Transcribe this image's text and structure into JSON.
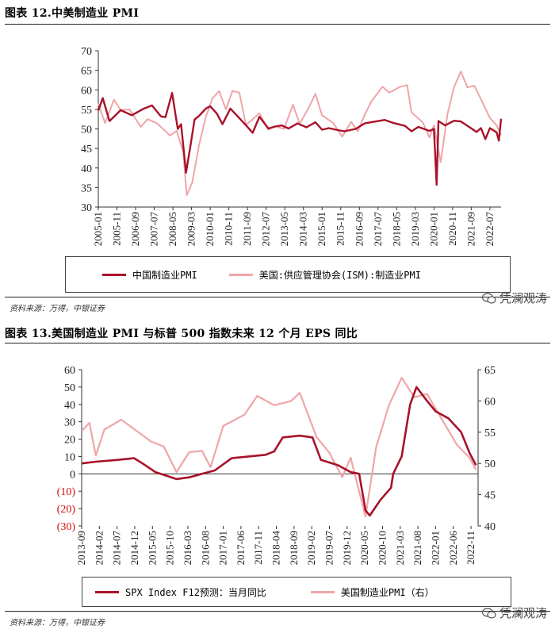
{
  "chart1": {
    "title": "图表 12.中美制造业 PMI",
    "source": "资料来源：万得，中银证券",
    "legend": [
      "中国制造业PMI",
      "美国:供应管理协会(ISM):制造业PMI"
    ],
    "colors": {
      "china": "#a8122a",
      "us": "#f0a5a8"
    }
  },
  "chart2": {
    "title": "图表 13.美国制造业 PMI 与标普 500 指数未来 12 个月 EPS 同比",
    "source": "资料来源：万得，中银证券",
    "legend": [
      "SPX Index F12预测：当月同比",
      "美国制造业PMI（右）"
    ],
    "colors": {
      "eps": "#a8122a",
      "pmi": "#f0a5a8",
      "negative_label": "#d01010"
    }
  },
  "watermark": "凭澜观涛",
  "chart_data": [
    {
      "type": "line",
      "title": "图表 12.中美制造业 PMI",
      "xlabel": "",
      "ylabel": "",
      "ylim": [
        30,
        70
      ],
      "yticks": [
        30,
        35,
        40,
        45,
        50,
        55,
        60,
        65,
        70
      ],
      "x_range": [
        "2005-01",
        "2022-12"
      ],
      "x_ticks": [
        "2005-01",
        "2005-11",
        "2006-09",
        "2007-07",
        "2008-05",
        "2009-03",
        "2010-01",
        "2010-11",
        "2011-09",
        "2012-07",
        "2013-05",
        "2014-03",
        "2015-01",
        "2015-11",
        "2016-09",
        "2017-07",
        "2018-05",
        "2019-03",
        "2020-01",
        "2020-11",
        "2021-09",
        "2022-07"
      ],
      "series": [
        {
          "name": "中国制造业PMI",
          "points": [
            [
              2005.0,
              54.7
            ],
            [
              2005.2,
              57.9
            ],
            [
              2005.5,
              52.0
            ],
            [
              2006.0,
              54.8
            ],
            [
              2006.5,
              53.5
            ],
            [
              2007.0,
              55.1
            ],
            [
              2007.4,
              56.0
            ],
            [
              2007.8,
              53.2
            ],
            [
              2008.0,
              53.0
            ],
            [
              2008.3,
              59.2
            ],
            [
              2008.55,
              50.0
            ],
            [
              2008.7,
              51.2
            ],
            [
              2008.92,
              38.8
            ],
            [
              2009.1,
              45.0
            ],
            [
              2009.3,
              52.4
            ],
            [
              2009.5,
              53.3
            ],
            [
              2009.8,
              55.2
            ],
            [
              2010.0,
              55.8
            ],
            [
              2010.3,
              53.9
            ],
            [
              2010.55,
              51.2
            ],
            [
              2010.9,
              55.2
            ],
            [
              2011.2,
              53.4
            ],
            [
              2011.6,
              50.9
            ],
            [
              2011.9,
              49.0
            ],
            [
              2012.2,
              53.1
            ],
            [
              2012.6,
              50.1
            ],
            [
              2012.9,
              50.6
            ],
            [
              2013.2,
              50.9
            ],
            [
              2013.5,
              50.1
            ],
            [
              2013.9,
              51.4
            ],
            [
              2014.3,
              50.4
            ],
            [
              2014.7,
              51.7
            ],
            [
              2015.0,
              49.8
            ],
            [
              2015.3,
              50.2
            ],
            [
              2015.7,
              49.7
            ],
            [
              2016.0,
              49.4
            ],
            [
              2016.5,
              50.0
            ],
            [
              2016.9,
              51.4
            ],
            [
              2017.3,
              51.8
            ],
            [
              2017.8,
              52.3
            ],
            [
              2018.2,
              51.5
            ],
            [
              2018.7,
              50.8
            ],
            [
              2019.0,
              49.4
            ],
            [
              2019.3,
              50.5
            ],
            [
              2019.8,
              49.5
            ],
            [
              2020.0,
              50.0
            ],
            [
              2020.12,
              35.7
            ],
            [
              2020.2,
              52.0
            ],
            [
              2020.5,
              50.9
            ],
            [
              2020.9,
              52.1
            ],
            [
              2021.2,
              51.9
            ],
            [
              2021.6,
              50.4
            ],
            [
              2021.9,
              49.2
            ],
            [
              2022.1,
              50.2
            ],
            [
              2022.3,
              47.4
            ],
            [
              2022.5,
              50.2
            ],
            [
              2022.8,
              49.1
            ],
            [
              2022.9,
              47.0
            ],
            [
              2023.0,
              52.6
            ]
          ]
        },
        {
          "name": "美国:供应管理协会(ISM):制造业PMI",
          "points": [
            [
              2005.0,
              56.5
            ],
            [
              2005.3,
              51.5
            ],
            [
              2005.7,
              57.5
            ],
            [
              2006.0,
              54.8
            ],
            [
              2006.4,
              55.0
            ],
            [
              2006.9,
              50.5
            ],
            [
              2007.2,
              52.5
            ],
            [
              2007.6,
              51.5
            ],
            [
              2007.9,
              50.0
            ],
            [
              2008.2,
              48.3
            ],
            [
              2008.5,
              49.5
            ],
            [
              2008.8,
              44.0
            ],
            [
              2008.95,
              33.0
            ],
            [
              2009.2,
              36.3
            ],
            [
              2009.5,
              45.8
            ],
            [
              2009.8,
              53.0
            ],
            [
              2010.1,
              57.8
            ],
            [
              2010.4,
              59.7
            ],
            [
              2010.7,
              55.0
            ],
            [
              2011.0,
              59.7
            ],
            [
              2011.3,
              59.3
            ],
            [
              2011.6,
              51.0
            ],
            [
              2011.9,
              52.5
            ],
            [
              2012.2,
              54.0
            ],
            [
              2012.6,
              49.8
            ],
            [
              2012.9,
              50.7
            ],
            [
              2013.3,
              50.0
            ],
            [
              2013.7,
              56.2
            ],
            [
              2014.0,
              51.3
            ],
            [
              2014.4,
              55.4
            ],
            [
              2014.7,
              59.0
            ],
            [
              2015.0,
              53.5
            ],
            [
              2015.5,
              51.5
            ],
            [
              2015.9,
              48.0
            ],
            [
              2016.3,
              51.8
            ],
            [
              2016.6,
              49.4
            ],
            [
              2016.9,
              53.5
            ],
            [
              2017.2,
              57.0
            ],
            [
              2017.7,
              60.8
            ],
            [
              2018.0,
              59.3
            ],
            [
              2018.5,
              60.8
            ],
            [
              2018.8,
              61.2
            ],
            [
              2019.0,
              54.2
            ],
            [
              2019.5,
              51.7
            ],
            [
              2019.8,
              47.8
            ],
            [
              2020.0,
              50.9
            ],
            [
              2020.3,
              41.5
            ],
            [
              2020.6,
              53.7
            ],
            [
              2020.9,
              60.7
            ],
            [
              2021.2,
              64.7
            ],
            [
              2021.5,
              60.6
            ],
            [
              2021.8,
              61.1
            ],
            [
              2022.1,
              57.6
            ],
            [
              2022.5,
              52.8
            ],
            [
              2022.8,
              50.9
            ],
            [
              2023.0,
              48.4
            ]
          ]
        }
      ]
    },
    {
      "type": "line",
      "title": "图表 13.美国制造业 PMI 与标普 500 指数未来 12 个月 EPS 同比",
      "xlabel": "",
      "ylabel": "",
      "ylim": [
        -30,
        60
      ],
      "yticks_left": [
        "(30)",
        "(20)",
        "(10)",
        "0",
        "10",
        "20",
        "30",
        "40",
        "50",
        "60"
      ],
      "ylim_right": [
        40,
        65
      ],
      "yticks_right": [
        "40",
        "45",
        "50",
        "55",
        "60",
        "65"
      ],
      "x_range": [
        "2013-09",
        "2022-12"
      ],
      "x_ticks": [
        "2013-09",
        "2014-02",
        "2014-07",
        "2014-12",
        "2015-05",
        "2015-10",
        "2016-03",
        "2016-08",
        "2017-01",
        "2017-06",
        "2017-11",
        "2018-04",
        "2018-09",
        "2019-02",
        "2019-07",
        "2019-12",
        "2020-05",
        "2020-10",
        "2021-03",
        "2021-08",
        "2022-01",
        "2022-06",
        "2022-11"
      ],
      "series": [
        {
          "name": "SPX Index F12预测：当月同比",
          "axis": "left",
          "points": [
            [
              2013.67,
              6
            ],
            [
              2014.0,
              7
            ],
            [
              2014.5,
              8
            ],
            [
              2014.9,
              9
            ],
            [
              2015.1,
              6
            ],
            [
              2015.4,
              1
            ],
            [
              2015.9,
              -3
            ],
            [
              2016.2,
              -2
            ],
            [
              2016.5,
              0
            ],
            [
              2016.8,
              2
            ],
            [
              2017.2,
              9
            ],
            [
              2017.6,
              10
            ],
            [
              2018.0,
              11
            ],
            [
              2018.2,
              13
            ],
            [
              2018.4,
              21
            ],
            [
              2018.8,
              22
            ],
            [
              2019.1,
              21
            ],
            [
              2019.3,
              8
            ],
            [
              2019.7,
              5
            ],
            [
              2020.0,
              1
            ],
            [
              2020.2,
              0
            ],
            [
              2020.35,
              -21
            ],
            [
              2020.45,
              -24
            ],
            [
              2020.7,
              -15
            ],
            [
              2020.95,
              -8
            ],
            [
              2021.0,
              0
            ],
            [
              2021.2,
              10
            ],
            [
              2021.4,
              40
            ],
            [
              2021.55,
              50
            ],
            [
              2021.8,
              42
            ],
            [
              2022.0,
              36
            ],
            [
              2022.3,
              32
            ],
            [
              2022.6,
              24
            ],
            [
              2022.8,
              12
            ],
            [
              2022.95,
              5
            ]
          ]
        },
        {
          "name": "美国制造业PMI（右）",
          "axis": "right",
          "points": [
            [
              2013.67,
              55.2
            ],
            [
              2013.85,
              56.5
            ],
            [
              2014.0,
              51.3
            ],
            [
              2014.2,
              55.4
            ],
            [
              2014.6,
              57.0
            ],
            [
              2014.9,
              55.5
            ],
            [
              2015.3,
              53.5
            ],
            [
              2015.6,
              52.7
            ],
            [
              2015.9,
              48.6
            ],
            [
              2016.2,
              51.8
            ],
            [
              2016.5,
              52.0
            ],
            [
              2016.7,
              49.4
            ],
            [
              2017.0,
              56.0
            ],
            [
              2017.5,
              57.8
            ],
            [
              2017.8,
              60.8
            ],
            [
              2018.2,
              59.3
            ],
            [
              2018.6,
              60.0
            ],
            [
              2018.8,
              61.3
            ],
            [
              2019.2,
              54.2
            ],
            [
              2019.5,
              51.7
            ],
            [
              2019.8,
              47.8
            ],
            [
              2020.0,
              50.9
            ],
            [
              2020.35,
              41.5
            ],
            [
              2020.6,
              52.6
            ],
            [
              2020.9,
              59.3
            ],
            [
              2021.2,
              63.7
            ],
            [
              2021.5,
              60.6
            ],
            [
              2021.8,
              61.1
            ],
            [
              2022.1,
              57.6
            ],
            [
              2022.5,
              53.0
            ],
            [
              2022.8,
              50.9
            ],
            [
              2022.95,
              49.0
            ]
          ]
        }
      ]
    }
  ]
}
